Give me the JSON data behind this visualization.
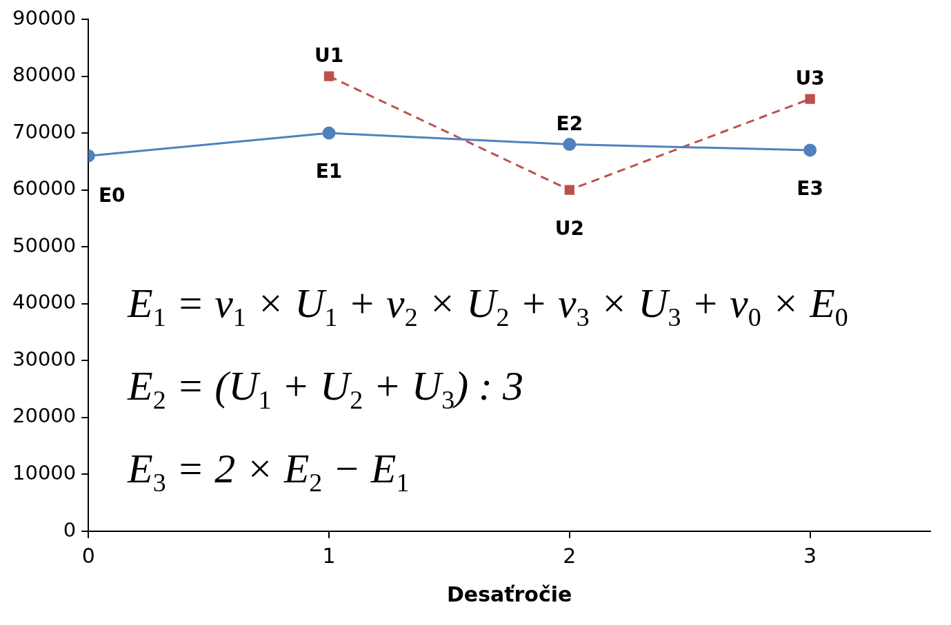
{
  "chart_data": {
    "type": "line",
    "xlabel": "Desaťročie",
    "xlim": [
      0,
      3.5
    ],
    "xticks": [
      0,
      1,
      2,
      3
    ],
    "ylim": [
      0,
      90000
    ],
    "yticks": [
      0,
      10000,
      20000,
      30000,
      40000,
      50000,
      60000,
      70000,
      80000,
      90000
    ],
    "grid": false,
    "legend": false,
    "series": [
      {
        "color": "#4f81bd",
        "x": [
          0,
          1,
          2,
          3
        ],
        "values": [
          66000,
          70000,
          68000,
          67000
        ],
        "marker": "circle",
        "line_style": "solid"
      },
      {
        "color": "#c0504d",
        "x": [
          1,
          2,
          3
        ],
        "values": [
          80000,
          60000,
          76000
        ],
        "marker": "square",
        "line_style": "dashed"
      }
    ],
    "annotations": [
      {
        "text": "E0",
        "x": 0,
        "y": 66000
      },
      {
        "text": "E1",
        "x": 1,
        "y": 70000
      },
      {
        "text": "E2",
        "x": 2,
        "y": 68000
      },
      {
        "text": "E3",
        "x": 3,
        "y": 67000
      },
      {
        "text": "U1",
        "x": 1,
        "y": 80000
      },
      {
        "text": "U2",
        "x": 2,
        "y": 60000
      },
      {
        "text": "U3",
        "x": 3,
        "y": 76000
      },
      "E$_{1}$ = v$_{1}$ × U$_{1}$ + v$_{2}$ × U$_{2}$ + v$_{3}$ × U$_{3}$ + v$_{0}$ × E$_{0}$",
      "E$_{2}$ = (U$_{1}$ + U$_{2}$ + U$_{3}$) : 3",
      "E$_{3}$ = 2 × E$_{2}$ − E$_{1}$"
    ]
  }
}
